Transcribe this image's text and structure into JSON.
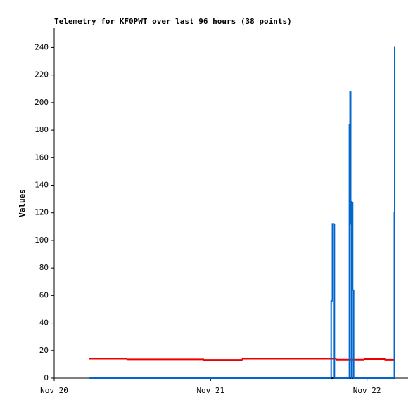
{
  "chart_data": {
    "type": "line",
    "step": true,
    "title": "Telemetry for KF0PWT over last 96 hours (38 points)",
    "y_label": "Values",
    "xlim": [
      0,
      54.3
    ],
    "ylim": [
      0,
      254
    ],
    "xticks": [
      {
        "value": 0,
        "label": "Nov 20"
      },
      {
        "value": 24,
        "label": "Nov 21"
      },
      {
        "value": 48,
        "label": "Nov 22"
      }
    ],
    "yticks": [
      0,
      20,
      40,
      60,
      80,
      100,
      120,
      140,
      160,
      180,
      200,
      220,
      240
    ],
    "grid": false,
    "series": [
      {
        "color": "#000000",
        "x": [
          5.3,
          52.3
        ],
        "values": [
          0,
          0
        ]
      },
      {
        "color": "#ee0000",
        "x": [
          5.3,
          11.2,
          23.0,
          28.9,
          43.3,
          47.6,
          50.8,
          52.3
        ],
        "values": [
          14,
          13.6,
          13.2,
          14,
          13.4,
          13.8,
          13.3,
          13.3
        ]
      },
      {
        "color": "#0066cc",
        "x": [
          5.3,
          42.5,
          42.7,
          43.0,
          45.3,
          45.4,
          45.5,
          45.6,
          45.7,
          45.8,
          45.95,
          52.2,
          52.25,
          52.35
        ],
        "values": [
          0,
          56,
          112,
          0,
          184,
          208,
          112,
          0,
          128,
          64,
          0,
          120,
          240,
          240
        ]
      }
    ]
  }
}
